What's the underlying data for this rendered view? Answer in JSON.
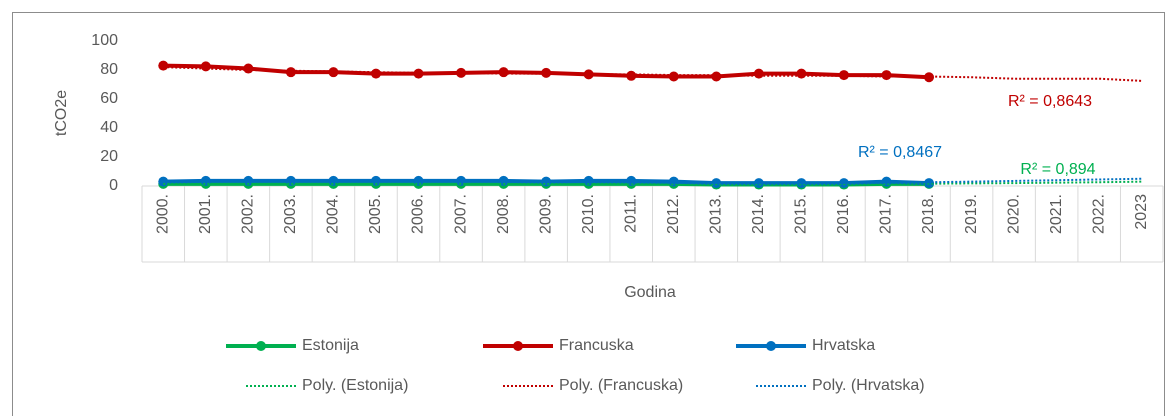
{
  "chart_data": {
    "type": "line",
    "y_label": "tCO2e",
    "x_label": "Godina",
    "categories": [
      "2000.",
      "2001.",
      "2002.",
      "2003.",
      "2004.",
      "2005.",
      "2006.",
      "2007.",
      "2008.",
      "2009.",
      "2010.",
      "2011.",
      "2012.",
      "2013.",
      "2014.",
      "2015.",
      "2016.",
      "2017.",
      "2018.",
      "2019.",
      "2020.",
      "2021.",
      "2022.",
      "2023"
    ],
    "ylim": [
      0,
      100
    ],
    "yticks": [
      0,
      20,
      40,
      60,
      80,
      100
    ],
    "series": [
      {
        "name": "Estonija",
        "color": "#00b050",
        "values": [
          1.5,
          1.5,
          1.5,
          1.5,
          1.5,
          1.5,
          1.5,
          1.5,
          1.5,
          1.5,
          1.5,
          1.5,
          1.5,
          1,
          1,
          1,
          1,
          1.5,
          1.5,
          null,
          null,
          null,
          null,
          null
        ]
      },
      {
        "name": "Francuska",
        "color": "#c00000",
        "values": [
          83,
          82.5,
          81,
          78.5,
          78.5,
          77.5,
          77.5,
          78,
          78.5,
          78,
          77,
          76,
          75.5,
          75.5,
          77.5,
          77.5,
          76.5,
          76.5,
          75,
          null,
          null,
          null,
          null,
          null
        ]
      },
      {
        "name": "Hrvatska",
        "color": "#0070c0",
        "values": [
          3,
          3.5,
          3.5,
          3.5,
          3.5,
          3.5,
          3.5,
          3.5,
          3.5,
          3,
          3.5,
          3.5,
          3,
          2,
          2,
          2,
          2,
          3,
          2,
          null,
          null,
          null,
          null,
          null
        ]
      }
    ],
    "trendlines": [
      {
        "name": "Poly. (Estonija)",
        "color": "#00b050",
        "values": [
          1.5,
          1.5,
          1.5,
          1.5,
          1.5,
          1.5,
          1.5,
          1.5,
          1.5,
          1.5,
          1.5,
          1.5,
          1.2,
          1.2,
          1.2,
          1.2,
          1.3,
          1.4,
          1.6,
          1.8,
          2,
          2.3,
          2.6,
          3
        ]
      },
      {
        "name": "Poly. (Francuska)",
        "color": "#c00000",
        "values": [
          82,
          81,
          80,
          79.5,
          79,
          78.5,
          78,
          78,
          77.5,
          77.5,
          77,
          77,
          76.5,
          76.5,
          76,
          76,
          76,
          75.5,
          75.5,
          75,
          74,
          74,
          74,
          72.5
        ]
      },
      {
        "name": "Poly. (Hrvatska)",
        "color": "#0070c0",
        "values": [
          3.5,
          3.5,
          3.5,
          3.5,
          3.5,
          3.5,
          3.3,
          3.2,
          3,
          2.8,
          2.6,
          2.4,
          2.2,
          2.1,
          2,
          2,
          2.1,
          2.3,
          2.6,
          3,
          3.5,
          4,
          4.5,
          5
        ]
      }
    ],
    "annotations": [
      {
        "text": "R² = 0,8643",
        "color": "#c00000"
      },
      {
        "text": "R² = 0,8467",
        "color": "#0070c0"
      },
      {
        "text": "R² = 0,894",
        "color": "#00b050"
      }
    ]
  }
}
